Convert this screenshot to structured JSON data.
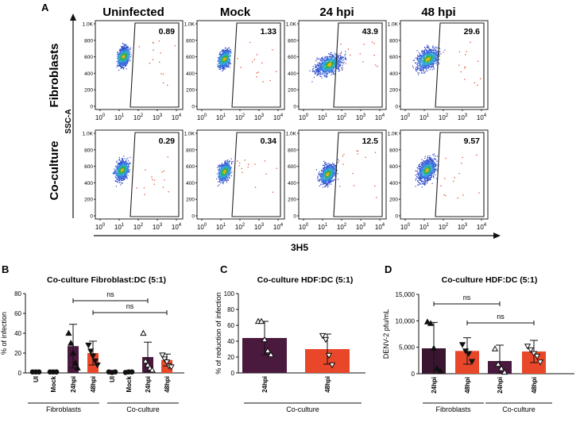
{
  "figure": {
    "panel_a": {
      "label": "A",
      "columns": [
        "Uninfected",
        "Mock",
        "24 hpi",
        "48 hpi"
      ],
      "rows": [
        "Fibroblasts",
        "Co-culture"
      ],
      "y_axis_label": "SSC-A",
      "x_axis_label": "3H5",
      "y_ticks": [
        "1.0K",
        "800",
        "600",
        "400",
        "200",
        "0"
      ],
      "x_tick_exponents": [
        "0",
        "1",
        "2",
        "3",
        "4"
      ],
      "gate_values": [
        [
          "0.89",
          "1.33",
          "43.9",
          "29.6"
        ],
        [
          "0.29",
          "0.34",
          "12.5",
          "9.57"
        ]
      ]
    },
    "panel_b": {
      "label": "B"
    },
    "panel_c": {
      "label": "C"
    },
    "panel_d": {
      "label": "D"
    }
  },
  "chart_data": [
    {
      "type": "bar",
      "title": "Co-culture Fibroblast:DC (5:1)",
      "ylabel": "% of infection",
      "ylim": [
        0,
        80
      ],
      "yticks": [
        0,
        20,
        40,
        60,
        80
      ],
      "categories": [
        "UI",
        "Mock",
        "24hpi",
        "48hpi",
        "UI",
        "Mock",
        "24hpi",
        "48hpi"
      ],
      "groups": [
        "Fibroblasts",
        "Co-culture"
      ],
      "values": [
        1,
        1,
        27,
        20,
        1,
        1,
        16,
        13
      ],
      "errors": [
        0.5,
        0.5,
        22,
        12,
        0.5,
        0.5,
        15,
        6
      ],
      "colors": [
        "#3b1530",
        "#3b1530",
        "#4a1a3e",
        "#e8472a",
        "#3b1530",
        "#3b1530",
        "#4a1a3e",
        "#e8472a"
      ],
      "markers": [
        "circle",
        "circle",
        "triangle",
        "triangle-down",
        "circle",
        "circle",
        "triangle-open",
        "triangle-down-open"
      ],
      "points": [
        [
          1,
          1,
          1
        ],
        [
          1,
          1,
          1
        ],
        [
          40,
          30,
          20,
          10,
          5
        ],
        [
          28,
          22,
          17,
          12,
          8
        ],
        [
          1,
          0.5,
          1
        ],
        [
          0.5,
          1,
          1
        ],
        [
          40,
          12,
          8,
          5,
          3
        ],
        [
          18,
          14,
          11,
          7,
          6
        ]
      ],
      "annotations": [
        {
          "text": "ns",
          "from": 2,
          "to": 6
        },
        {
          "text": "ns",
          "from": 3,
          "to": 7
        }
      ]
    },
    {
      "type": "bar",
      "title": "Co-culture HDF:DC (5:1)",
      "ylabel": "% of reduction of infection",
      "ylim": [
        0,
        100
      ],
      "yticks": [
        0,
        20,
        40,
        60,
        80,
        100
      ],
      "categories": [
        "24hpi",
        "48hpi"
      ],
      "groups": [
        "Co-culture"
      ],
      "values": [
        44,
        30
      ],
      "errors": [
        21,
        19
      ],
      "colors": [
        "#4a1a3e",
        "#e8472a"
      ],
      "markers": [
        "triangle-open",
        "triangle-down-open"
      ],
      "points": [
        [
          65,
          65,
          42,
          28,
          23
        ],
        [
          47,
          42,
          22,
          10
        ]
      ]
    },
    {
      "type": "bar",
      "title": "Co-culture HDF:DC (5:1)",
      "ylabel": "DENV-2 pfu/mL",
      "ylim": [
        0,
        15000
      ],
      "yticks": [
        "0",
        "5,000",
        "10,000",
        "15,000"
      ],
      "yticks_values": [
        0,
        5000,
        10000,
        15000
      ],
      "categories": [
        "24hpi",
        "48hpi",
        "24hpi",
        "48hpi"
      ],
      "groups": [
        "Fibroblasts",
        "Co-culture"
      ],
      "values": [
        4800,
        4300,
        2400,
        4200
      ],
      "errors": [
        4900,
        2500,
        3000,
        2100
      ],
      "colors": [
        "#3b1530",
        "#e8472a",
        "#4a1a3e",
        "#e8472a"
      ],
      "markers": [
        "triangle",
        "triangle-down",
        "triangle-open",
        "triangle-down-open"
      ],
      "points": [
        [
          9800,
          9500,
          4800,
          1000,
          500
        ],
        [
          5500,
          4300,
          3800,
          2300
        ],
        [
          4700,
          1800,
          1000,
          300
        ],
        [
          5200,
          4500,
          3800,
          3300,
          2200
        ]
      ],
      "annotations": [
        {
          "text": "ns",
          "from": 0,
          "to": 2
        },
        {
          "text": "ns",
          "from": 1,
          "to": 3
        }
      ]
    }
  ]
}
